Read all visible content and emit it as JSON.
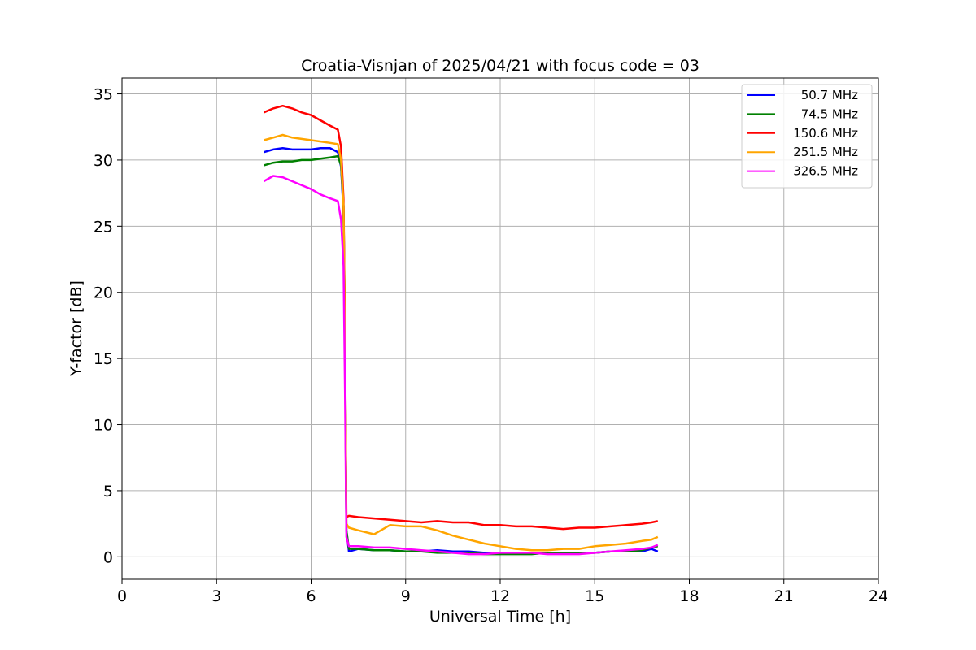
{
  "chart_data": {
    "type": "line",
    "title": "Croatia-Visnjan of 2025/04/21 with focus code = 03",
    "xlabel": "Universal Time [h]",
    "ylabel": "Y-factor [dB]",
    "xlim": [
      0,
      24
    ],
    "ylim": [
      -1.7,
      36.2
    ],
    "xticks": [
      "0",
      "3",
      "6",
      "9",
      "12",
      "15",
      "18",
      "21",
      "24"
    ],
    "yticks": [
      "0",
      "5",
      "10",
      "15",
      "20",
      "25",
      "30",
      "35"
    ],
    "grid": true,
    "legend_position": "top-right",
    "series": [
      {
        "name": "50.7 MHz",
        "color": "#0000ff",
        "x": [
          4.5,
          4.8,
          5.1,
          5.4,
          5.7,
          6.0,
          6.3,
          6.6,
          6.85,
          6.95,
          7.03,
          7.08,
          7.12,
          7.2,
          7.5,
          8.0,
          8.5,
          9.0,
          9.5,
          10.0,
          10.5,
          11.0,
          11.5,
          12.0,
          12.5,
          13.0,
          13.5,
          14.0,
          14.5,
          15.0,
          15.5,
          16.0,
          16.5,
          16.8,
          17.0
        ],
        "values": [
          30.6,
          30.8,
          30.9,
          30.8,
          30.8,
          30.8,
          30.9,
          30.9,
          30.6,
          29.5,
          26.0,
          15.0,
          2.0,
          0.4,
          0.6,
          0.5,
          0.5,
          0.4,
          0.4,
          0.5,
          0.4,
          0.4,
          0.3,
          0.3,
          0.3,
          0.3,
          0.3,
          0.3,
          0.3,
          0.3,
          0.4,
          0.4,
          0.4,
          0.6,
          0.4
        ]
      },
      {
        "name": "74.5 MHz",
        "color": "#008000",
        "x": [
          4.5,
          4.8,
          5.1,
          5.4,
          5.7,
          6.0,
          6.3,
          6.6,
          6.85,
          6.95,
          7.03,
          7.08,
          7.12,
          7.2,
          7.5,
          8.0,
          8.5,
          9.0,
          9.5,
          10.0,
          10.5,
          11.0,
          11.5,
          12.0,
          12.5,
          13.0,
          13.5,
          14.0,
          14.5,
          15.0,
          15.5,
          16.0,
          16.5,
          16.8,
          17.0
        ],
        "values": [
          29.6,
          29.8,
          29.9,
          29.9,
          30.0,
          30.0,
          30.1,
          30.2,
          30.3,
          29.6,
          26.5,
          16.0,
          2.0,
          0.6,
          0.6,
          0.5,
          0.5,
          0.4,
          0.4,
          0.3,
          0.3,
          0.3,
          0.2,
          0.2,
          0.2,
          0.2,
          0.3,
          0.3,
          0.3,
          0.3,
          0.4,
          0.4,
          0.5,
          0.7,
          0.8
        ]
      },
      {
        "name": "150.6 MHz",
        "color": "#ff0000",
        "x": [
          4.5,
          4.8,
          5.1,
          5.4,
          5.7,
          6.0,
          6.3,
          6.6,
          6.85,
          6.95,
          7.03,
          7.08,
          7.12,
          7.2,
          7.5,
          8.0,
          8.5,
          9.0,
          9.5,
          10.0,
          10.5,
          11.0,
          11.5,
          12.0,
          12.5,
          13.0,
          13.5,
          14.0,
          14.5,
          15.0,
          15.5,
          16.0,
          16.5,
          16.8,
          17.0
        ],
        "values": [
          33.6,
          33.9,
          34.1,
          33.9,
          33.6,
          33.4,
          33.0,
          32.6,
          32.3,
          31.0,
          27.0,
          16.0,
          3.0,
          3.1,
          3.0,
          2.9,
          2.8,
          2.7,
          2.6,
          2.7,
          2.6,
          2.6,
          2.4,
          2.4,
          2.3,
          2.3,
          2.2,
          2.1,
          2.2,
          2.2,
          2.3,
          2.4,
          2.5,
          2.6,
          2.7
        ]
      },
      {
        "name": "251.5 MHz",
        "color": "#ffa500",
        "x": [
          4.5,
          4.8,
          5.1,
          5.4,
          5.7,
          6.0,
          6.3,
          6.6,
          6.85,
          6.95,
          7.03,
          7.08,
          7.12,
          7.2,
          7.5,
          8.0,
          8.5,
          9.0,
          9.5,
          10.0,
          10.5,
          11.0,
          11.5,
          12.0,
          12.5,
          13.0,
          13.5,
          14.0,
          14.5,
          15.0,
          15.5,
          16.0,
          16.5,
          16.8,
          17.0
        ],
        "values": [
          31.5,
          31.7,
          31.9,
          31.7,
          31.6,
          31.5,
          31.4,
          31.3,
          31.2,
          30.0,
          26.5,
          15.0,
          2.5,
          2.2,
          2.0,
          1.7,
          2.4,
          2.3,
          2.3,
          2.0,
          1.6,
          1.3,
          1.0,
          0.8,
          0.6,
          0.5,
          0.5,
          0.6,
          0.6,
          0.8,
          0.9,
          1.0,
          1.2,
          1.3,
          1.5
        ]
      },
      {
        "name": "326.5 MHz",
        "color": "#ff00ff",
        "x": [
          4.5,
          4.8,
          5.1,
          5.4,
          5.7,
          6.0,
          6.3,
          6.6,
          6.85,
          6.95,
          7.03,
          7.08,
          7.12,
          7.2,
          7.5,
          8.0,
          8.5,
          9.0,
          9.5,
          10.0,
          10.5,
          11.0,
          11.5,
          12.0,
          12.5,
          13.0,
          13.5,
          14.0,
          14.5,
          15.0,
          15.5,
          16.0,
          16.5,
          16.8,
          17.0
        ],
        "values": [
          28.4,
          28.8,
          28.7,
          28.4,
          28.1,
          27.8,
          27.4,
          27.1,
          26.9,
          25.5,
          22.0,
          12.0,
          1.5,
          0.8,
          0.8,
          0.7,
          0.7,
          0.6,
          0.5,
          0.4,
          0.3,
          0.2,
          0.2,
          0.3,
          0.3,
          0.3,
          0.2,
          0.2,
          0.2,
          0.3,
          0.4,
          0.5,
          0.6,
          0.7,
          0.9
        ]
      }
    ]
  }
}
